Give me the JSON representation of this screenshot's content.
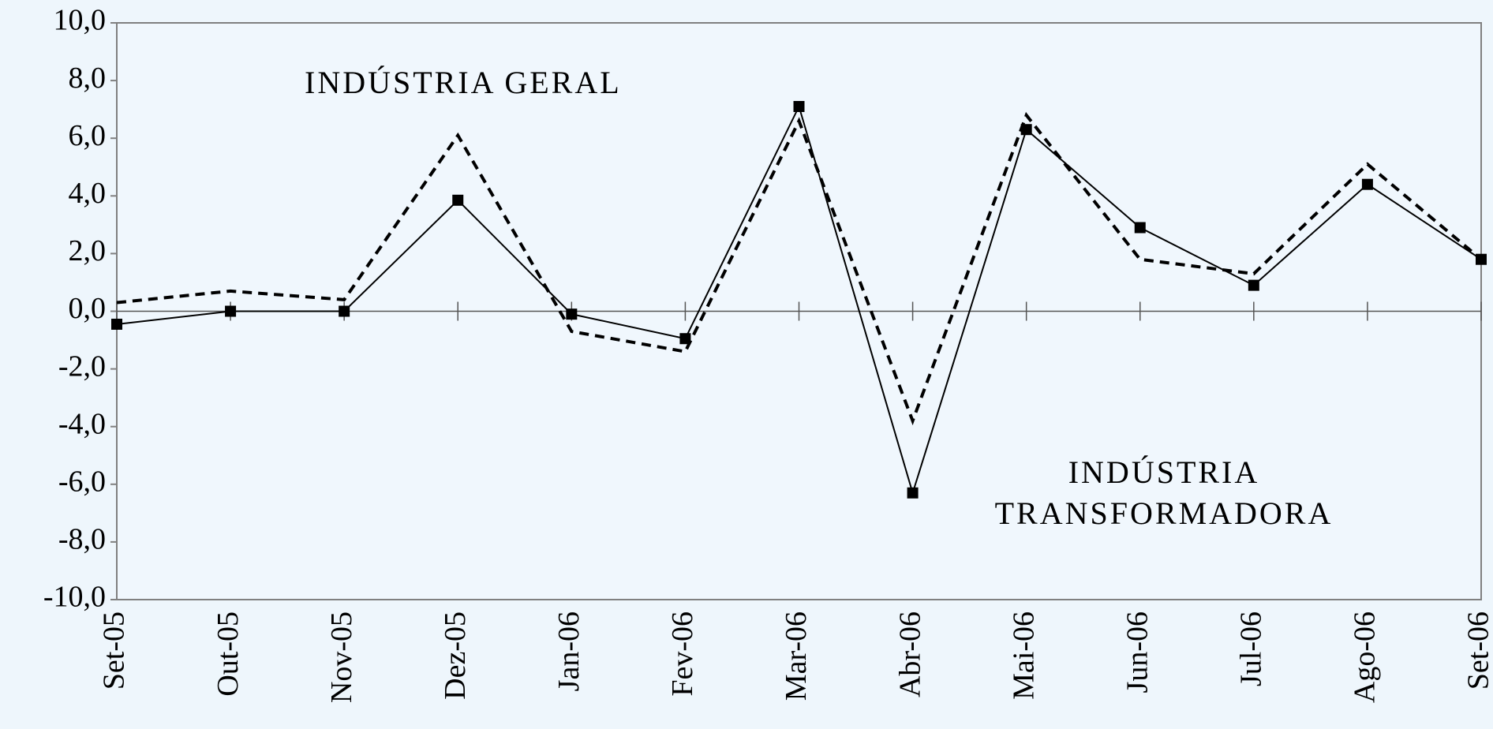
{
  "chart_data": {
    "type": "line",
    "categories": [
      "Set-05",
      "Out-05",
      "Nov-05",
      "Dez-05",
      "Jan-06",
      "Fev-06",
      "Mar-06",
      "Abr-06",
      "Mai-06",
      "Jun-06",
      "Jul-06",
      "Ago-06",
      "Set-06"
    ],
    "series": [
      {
        "color": "#000000",
        "dash": true,
        "markers": false,
        "values": [
          0.3,
          0.7,
          0.4,
          6.1,
          -0.7,
          -1.4,
          6.6,
          -3.8,
          6.8,
          1.8,
          1.3,
          5.1,
          1.8
        ]
      },
      {
        "color": "#000000",
        "dash": false,
        "markers": true,
        "values": [
          -0.45,
          0.0,
          0.0,
          3.85,
          -0.1,
          -0.95,
          7.1,
          -6.3,
          6.3,
          2.9,
          0.9,
          4.4,
          1.8
        ]
      }
    ],
    "annotations": [
      {
        "text": "INDÚSTRIA GERAL"
      },
      {
        "text": "INDÚSTRIA"
      },
      {
        "text": "TRANSFORMADORA"
      }
    ],
    "ylim": [
      -10,
      10
    ],
    "yticks": [
      {
        "value": -10,
        "label": "-10,0"
      },
      {
        "value": -8,
        "label": "-8,0"
      },
      {
        "value": -6,
        "label": "-6,0"
      },
      {
        "value": -4,
        "label": "-4,0"
      },
      {
        "value": -2,
        "label": "-2,0"
      },
      {
        "value": 0,
        "label": "0,0"
      },
      {
        "value": 2,
        "label": "2,0"
      },
      {
        "value": 4,
        "label": "4,0"
      },
      {
        "value": 6,
        "label": "6,0"
      },
      {
        "value": 8,
        "label": "8,0"
      },
      {
        "value": 10,
        "label": "10,0"
      }
    ]
  }
}
